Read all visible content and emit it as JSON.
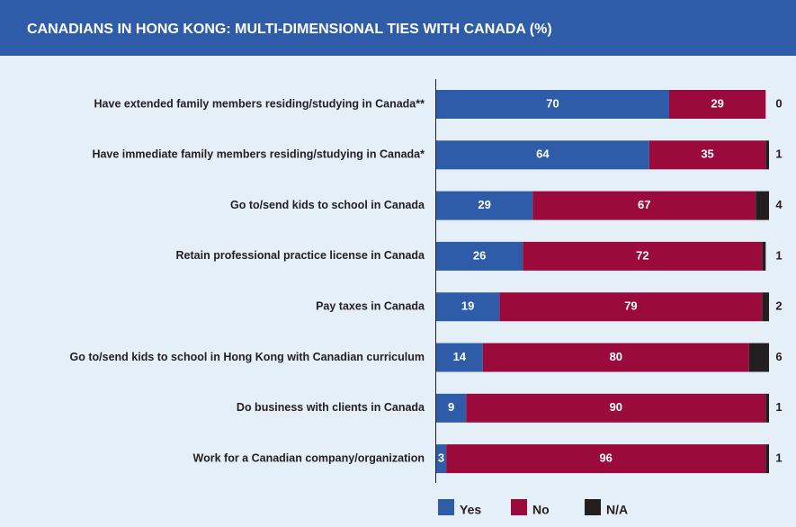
{
  "chart_data": {
    "type": "stacked-bar-horizontal",
    "title": "CANADIANS IN HONG KONG: MULTI-DIMENSIONAL TIES WITH CANADA (%)",
    "categories": [
      "Have extended family members residing/studying in Canada**",
      "Have immediate family members residing/studying in Canada*",
      "Go to/send kids to school in Canada",
      "Retain professional practice license in Canada",
      "Pay taxes in Canada",
      "Go to/send kids to school in Hong Kong with Canadian curriculum",
      "Do business with clients in Canada",
      "Work for a Canadian company/organization"
    ],
    "series": [
      {
        "name": "Yes",
        "color": "#2e5ca8",
        "values": [
          70,
          64,
          29,
          26,
          19,
          14,
          9,
          3
        ]
      },
      {
        "name": "No",
        "color": "#9a0b3b",
        "values": [
          29,
          35,
          67,
          72,
          79,
          80,
          90,
          96
        ]
      },
      {
        "name": "N/A",
        "color": "#231f20",
        "values": [
          0,
          1,
          4,
          1,
          2,
          6,
          1,
          1
        ]
      }
    ],
    "xlim": [
      0,
      100
    ],
    "legend": "bottom"
  }
}
